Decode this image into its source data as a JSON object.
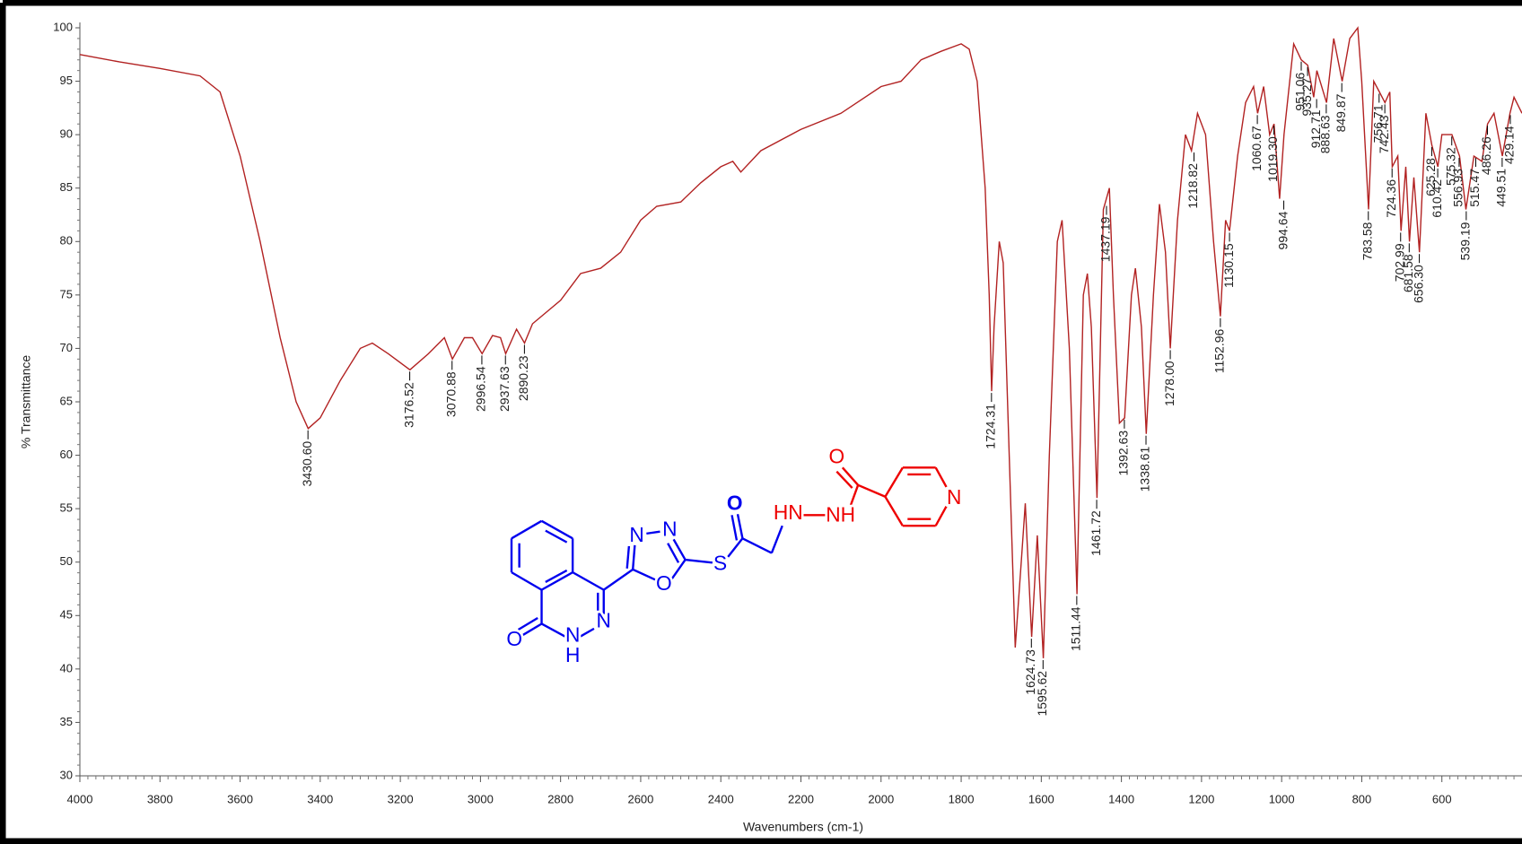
{
  "chart_data": {
    "type": "line",
    "xlabel": "Wavenumbers (cm-1)",
    "ylabel": "% Transmittance",
    "color": "#b22222",
    "x": [
      4000,
      3900,
      3800,
      3700,
      3650,
      3600,
      3550,
      3500,
      3460,
      3430,
      3400,
      3350,
      3300,
      3270,
      3230,
      3176,
      3130,
      3090,
      3070,
      3040,
      3020,
      2996,
      2970,
      2950,
      2937,
      2910,
      2890,
      2870,
      2800,
      2750,
      2700,
      2650,
      2600,
      2560,
      2500,
      2450,
      2400,
      2370,
      2350,
      2300,
      2200,
      2100,
      2000,
      1950,
      1900,
      1850,
      1800,
      1780,
      1760,
      1740,
      1730,
      1724,
      1718,
      1705,
      1695,
      1680,
      1665,
      1650,
      1640,
      1624,
      1610,
      1595,
      1580,
      1560,
      1548,
      1530,
      1511,
      1495,
      1485,
      1475,
      1461,
      1445,
      1430,
      1420,
      1405,
      1392,
      1375,
      1365,
      1350,
      1338,
      1320,
      1305,
      1290,
      1278,
      1260,
      1240,
      1225,
      1210,
      1190,
      1170,
      1153,
      1140,
      1130,
      1110,
      1090,
      1070,
      1060,
      1045,
      1030,
      1019,
      1005,
      994,
      970,
      951,
      935,
      920,
      912,
      888,
      870,
      849,
      830,
      810,
      800,
      783,
      770,
      756,
      742,
      730,
      724,
      710,
      702,
      690,
      681,
      670,
      656,
      640,
      625,
      610,
      600,
      590,
      575,
      556,
      540,
      520,
      500,
      486,
      470,
      449,
      430,
      420,
      400
    ],
    "values": [
      97.5,
      96.8,
      96.2,
      95.5,
      94,
      88,
      80,
      71,
      65,
      62.5,
      63.5,
      67,
      70,
      70.5,
      69.5,
      68,
      69.5,
      71,
      69,
      71,
      71,
      69.5,
      71.2,
      71,
      69.5,
      71.8,
      70.5,
      72.3,
      74.5,
      77,
      77.5,
      79,
      82,
      83.3,
      83.7,
      85.5,
      87,
      87.5,
      86.5,
      88.5,
      90.5,
      92,
      94.5,
      95,
      97,
      97.8,
      98.5,
      98,
      95,
      85,
      75,
      66,
      72,
      80,
      78,
      60,
      42,
      50,
      55.5,
      43,
      52.5,
      41,
      60,
      80,
      82,
      70,
      47,
      75,
      77,
      72,
      56,
      83,
      85,
      75,
      63,
      63.5,
      75,
      77.5,
      72,
      62,
      75,
      83.5,
      79,
      70,
      82,
      90,
      88.5,
      92,
      90,
      80,
      73,
      82,
      81,
      88,
      93,
      94.5,
      92,
      94.5,
      90,
      91,
      84,
      90,
      98.5,
      97,
      96.5,
      93.5,
      96,
      93,
      99,
      95,
      99,
      100,
      95,
      83,
      95,
      94,
      93,
      94,
      87,
      88,
      81,
      87,
      80,
      86,
      79,
      92,
      89,
      87,
      90,
      90,
      90,
      88,
      83,
      88,
      87.5,
      91,
      92,
      88,
      92,
      93.5,
      92
    ],
    "xlim": [
      4000,
      400
    ],
    "ylim": [
      30,
      100
    ],
    "xticks": [
      4000,
      3800,
      3600,
      3400,
      3200,
      3000,
      2800,
      2600,
      2400,
      2200,
      2000,
      1800,
      1600,
      1400,
      1200,
      1000,
      800,
      600
    ],
    "yticks": [
      30,
      35,
      40,
      45,
      50,
      55,
      60,
      65,
      70,
      75,
      80,
      85,
      90,
      95,
      100
    ],
    "peaks": [
      {
        "x": 3430.6,
        "y": 62.5,
        "label": "3430.60"
      },
      {
        "x": 3176.52,
        "y": 68,
        "label": "3176.52"
      },
      {
        "x": 3070.88,
        "y": 69,
        "label": "3070.88"
      },
      {
        "x": 2996.54,
        "y": 69.5,
        "label": "2996.54"
      },
      {
        "x": 2937.63,
        "y": 69.5,
        "label": "2937.63"
      },
      {
        "x": 2890.23,
        "y": 70.5,
        "label": "2890.23"
      },
      {
        "x": 1724.31,
        "y": 66,
        "label": "1724.31"
      },
      {
        "x": 1624.73,
        "y": 43,
        "label": "1624.73"
      },
      {
        "x": 1595.62,
        "y": 41,
        "label": "1595.62"
      },
      {
        "x": 1511.44,
        "y": 47,
        "label": "1511.44"
      },
      {
        "x": 1461.72,
        "y": 56,
        "label": "1461.72"
      },
      {
        "x": 1437.19,
        "y": 83.5,
        "label": "1437.19"
      },
      {
        "x": 1392.63,
        "y": 63.5,
        "label": "1392.63"
      },
      {
        "x": 1338.61,
        "y": 62,
        "label": "1338.61"
      },
      {
        "x": 1278,
        "y": 70,
        "label": "1278.00"
      },
      {
        "x": 1218.82,
        "y": 88.5,
        "label": "1218.82"
      },
      {
        "x": 1152.96,
        "y": 73,
        "label": "1152.96"
      },
      {
        "x": 1130.15,
        "y": 81,
        "label": "1130.15"
      },
      {
        "x": 1060.67,
        "y": 92,
        "label": "1060.67"
      },
      {
        "x": 1019.3,
        "y": 91,
        "label": "1019.30"
      },
      {
        "x": 994.64,
        "y": 84,
        "label": "994.64"
      },
      {
        "x": 951.06,
        "y": 97,
        "label": "951.06"
      },
      {
        "x": 935.27,
        "y": 96.5,
        "label": "935.27"
      },
      {
        "x": 912.71,
        "y": 93.5,
        "label": "912.71"
      },
      {
        "x": 888.63,
        "y": 93,
        "label": "888.63"
      },
      {
        "x": 849.87,
        "y": 95,
        "label": "849.87"
      },
      {
        "x": 783.58,
        "y": 83,
        "label": "783.58"
      },
      {
        "x": 756.71,
        "y": 94,
        "label": "756.71"
      },
      {
        "x": 742.43,
        "y": 93,
        "label": "742.43"
      },
      {
        "x": 724.36,
        "y": 87,
        "label": "724.36"
      },
      {
        "x": 702.99,
        "y": 81,
        "label": "702.99"
      },
      {
        "x": 681.58,
        "y": 80,
        "label": "681.58"
      },
      {
        "x": 656.3,
        "y": 79,
        "label": "656.30"
      },
      {
        "x": 625.28,
        "y": 89,
        "label": "625.28"
      },
      {
        "x": 610.42,
        "y": 87,
        "label": "610.42"
      },
      {
        "x": 575.32,
        "y": 90,
        "label": "575.32"
      },
      {
        "x": 556.93,
        "y": 88,
        "label": "556.93"
      },
      {
        "x": 539.19,
        "y": 83,
        "label": "539.19"
      },
      {
        "x": 515.47,
        "y": 88,
        "label": "515.47"
      },
      {
        "x": 486.26,
        "y": 91,
        "label": "486.26"
      },
      {
        "x": 449.51,
        "y": 88,
        "label": "449.51"
      },
      {
        "x": 429.14,
        "y": 92,
        "label": "429.14"
      }
    ],
    "structure": {
      "atoms": [
        "O",
        "N",
        "H",
        "N",
        "N",
        "N",
        "O",
        "S",
        "O",
        "HN",
        "NH",
        "O",
        "N"
      ]
    }
  }
}
